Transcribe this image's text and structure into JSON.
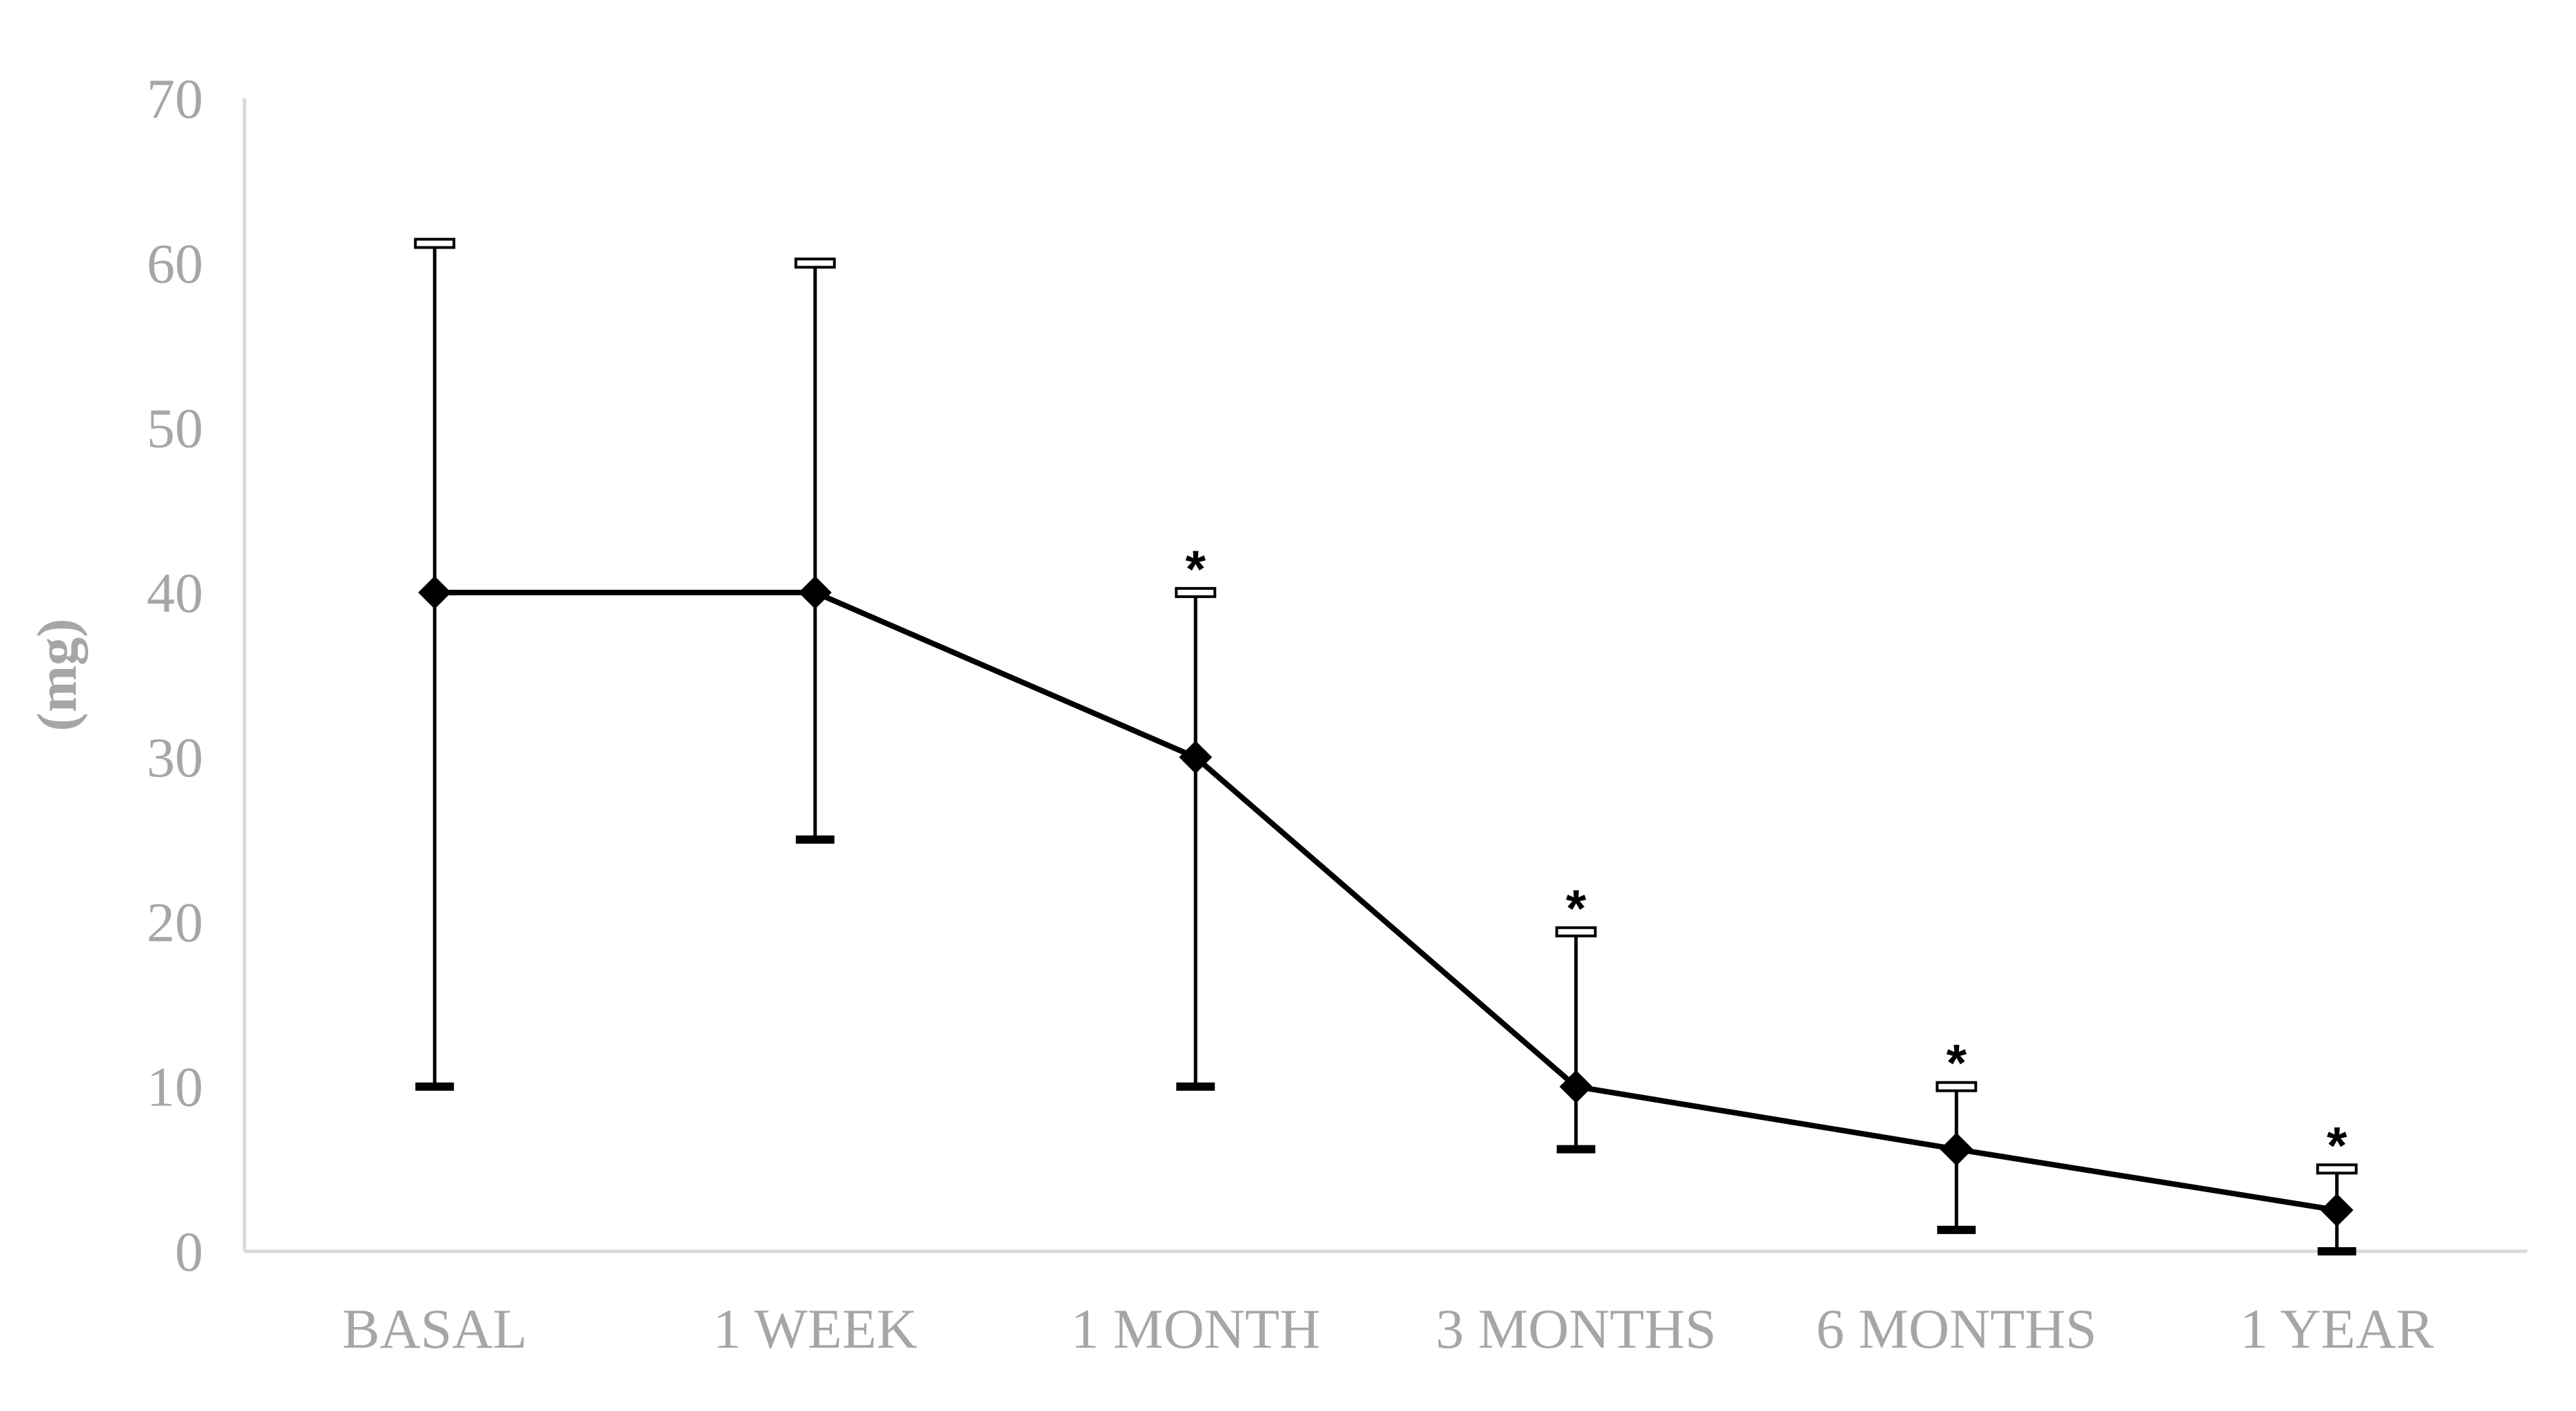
{
  "chart_data": {
    "type": "line",
    "title": "",
    "xlabel": "",
    "ylabel": "(mg)",
    "ylim": [
      0,
      70
    ],
    "yticks": [
      0,
      10,
      20,
      30,
      40,
      50,
      60,
      70
    ],
    "grid": false,
    "legend": "none",
    "categories": [
      "BASAL",
      "1 WEEK",
      "1 MONTH",
      "3 MONTHS",
      "6 MONTHS",
      "1 YEAR"
    ],
    "series": [
      {
        "values": [
          40,
          40,
          30,
          10,
          6.2,
          2.5
        ],
        "error_low": [
          10,
          25,
          10,
          6.2,
          1.3,
          0
        ],
        "error_high": [
          61.2,
          60,
          40,
          19.4,
          10,
          5
        ]
      }
    ],
    "annotations": [
      "",
      "",
      "*",
      "*",
      "*",
      "*"
    ],
    "colors": {
      "line": "#000000",
      "axis": "#d9d9d9",
      "labels": "#a6a6a6"
    },
    "marker": "diamond"
  }
}
